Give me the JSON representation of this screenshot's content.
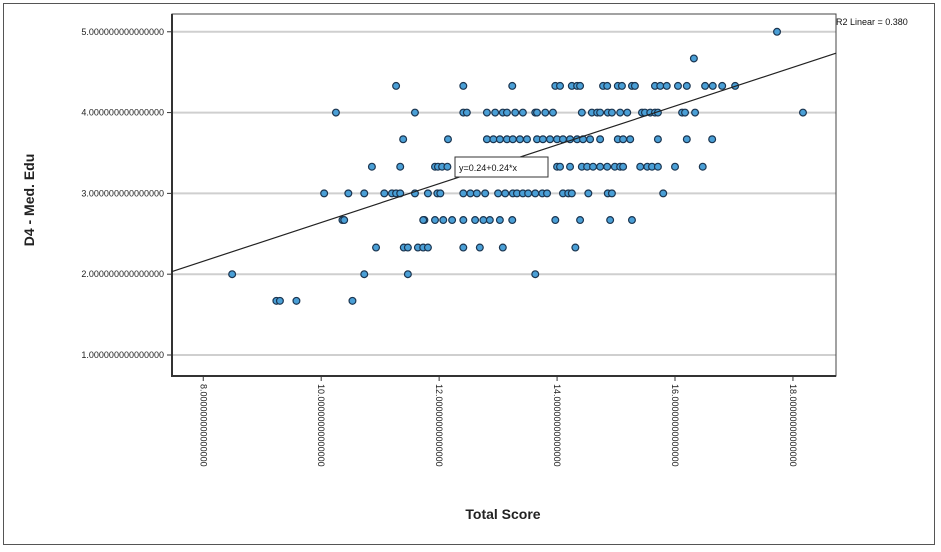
{
  "chart_data": {
    "type": "scatter",
    "xlabel": "Total Score",
    "ylabel": "D4 - Med. Edu",
    "xlim": [
      7.47,
      18.73
    ],
    "ylim": [
      0.74,
      5.22
    ],
    "x_ticks": [
      8,
      10,
      12,
      14,
      16,
      18
    ],
    "x_tick_labels": [
      "8.000000000000000",
      "10.00000000000000",
      "12.00000000000000",
      "14.00000000000000",
      "16.00000000000000",
      "18.00000000000000"
    ],
    "y_ticks": [
      5,
      4,
      3,
      2,
      1
    ],
    "y_tick_labels": [
      "5.000000000000000",
      "4.000000000000000",
      "3.000000000000000",
      "2.000000000000000",
      "1.000000000000000"
    ],
    "grid": "horizontal",
    "fit_line": {
      "intercept": 0.24,
      "slope": 0.24,
      "label": "y=0.24+0.24*x"
    },
    "r2_label": "R2 Linear = 0.380",
    "colors": {
      "point_fill": "#4a9fd6",
      "point_stroke": "#1b3550",
      "line": "#222222",
      "grid": "#cfcfcf"
    },
    "rows": [
      {
        "y": 5.0,
        "x": [
          17.73
        ]
      },
      {
        "y": 4.67,
        "x": [
          16.32
        ]
      },
      {
        "y": 4.33,
        "x": [
          11.27,
          12.41,
          13.24,
          13.97,
          14.05,
          14.25,
          14.34,
          14.39,
          14.78,
          14.85,
          15.03,
          15.1,
          15.27,
          15.32,
          15.66,
          15.75,
          15.86,
          16.05,
          16.2,
          16.51,
          16.64,
          16.8,
          17.02
        ]
      },
      {
        "y": 4.0,
        "x": [
          10.25,
          11.59,
          12.41,
          12.47,
          12.81,
          12.95,
          13.08,
          13.15,
          13.29,
          13.42,
          13.63,
          13.66,
          13.8,
          13.93,
          14.42,
          14.59,
          14.68,
          14.73,
          14.86,
          14.93,
          15.07,
          15.19,
          15.44,
          15.49,
          15.58,
          15.66,
          15.71,
          16.12,
          16.17,
          16.34,
          18.17
        ]
      },
      {
        "y": 3.67,
        "x": [
          11.39,
          12.15,
          12.81,
          12.92,
          13.03,
          13.15,
          13.25,
          13.37,
          13.49,
          13.66,
          13.76,
          13.88,
          14.0,
          14.1,
          14.22,
          14.34,
          14.44,
          14.56,
          14.73,
          15.03,
          15.12,
          15.24,
          15.71,
          16.2,
          16.63
        ]
      },
      {
        "y": 3.33,
        "x": [
          10.86,
          11.34,
          11.93,
          11.98,
          12.05,
          12.14,
          14.0,
          14.05,
          14.22,
          14.42,
          14.51,
          14.61,
          14.73,
          14.85,
          14.98,
          15.07,
          15.12,
          15.41,
          15.53,
          15.61,
          15.71,
          16.0,
          16.47
        ]
      },
      {
        "y": 3.0,
        "x": [
          10.05,
          10.46,
          10.73,
          11.07,
          11.2,
          11.27,
          11.34,
          11.59,
          11.81,
          11.97,
          12.02,
          12.41,
          12.53,
          12.64,
          12.78,
          13.0,
          13.12,
          13.25,
          13.32,
          13.42,
          13.51,
          13.63,
          13.75,
          13.83,
          14.1,
          14.19,
          14.25,
          14.53,
          14.86,
          14.93,
          15.8
        ]
      },
      {
        "y": 2.67,
        "x": [
          10.36,
          10.39,
          11.75,
          11.73,
          11.93,
          12.07,
          12.22,
          12.41,
          12.61,
          12.75,
          12.86,
          13.03,
          13.24,
          13.97,
          14.39,
          14.9,
          15.27
        ]
      },
      {
        "y": 2.33,
        "x": [
          10.93,
          11.4,
          11.47,
          11.64,
          11.73,
          11.81,
          12.41,
          12.69,
          13.08,
          14.31
        ]
      },
      {
        "y": 2.0,
        "x": [
          8.49,
          10.73,
          11.47,
          13.63
        ]
      },
      {
        "y": 1.67,
        "x": [
          9.24,
          9.3,
          9.58,
          10.53
        ]
      }
    ]
  }
}
